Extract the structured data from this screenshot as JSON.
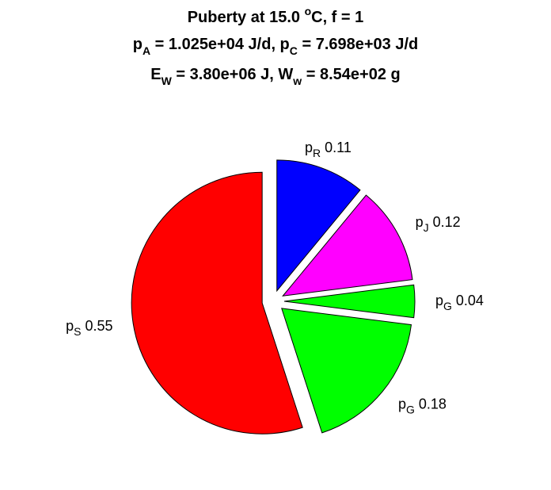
{
  "chart_data": {
    "type": "pie",
    "title_lines": [
      [
        {
          "text": "Puberty at 15.0 "
        },
        {
          "text": "o",
          "shift": "sup"
        },
        {
          "text": "C, f = 1"
        }
      ],
      [
        {
          "text": "p"
        },
        {
          "text": "A",
          "shift": "sub"
        },
        {
          "text": " = 1.025e+04 J/d,  p"
        },
        {
          "text": "C",
          "shift": "sub"
        },
        {
          "text": " = 7.698e+03 J/d"
        }
      ],
      [
        {
          "text": "E"
        },
        {
          "text": "W",
          "shift": "sub"
        },
        {
          "text": " = 3.80e+06 J, W"
        },
        {
          "text": "w",
          "shift": "sub"
        },
        {
          "text": " = 8.54e+02 g"
        }
      ]
    ],
    "labels": [
      {
        "base": "p",
        "sub": "R"
      },
      {
        "base": "p",
        "sub": "J"
      },
      {
        "base": "p",
        "sub": "G"
      },
      {
        "base": "p",
        "sub": "G"
      },
      {
        "base": "p",
        "sub": "S"
      }
    ],
    "values": [
      0.11,
      0.12,
      0.04,
      0.18,
      0.55
    ],
    "colors": [
      "#0000ff",
      "#ff00ff",
      "#00ff00",
      "#00ff00",
      "#ff0000"
    ],
    "exploded": true
  }
}
